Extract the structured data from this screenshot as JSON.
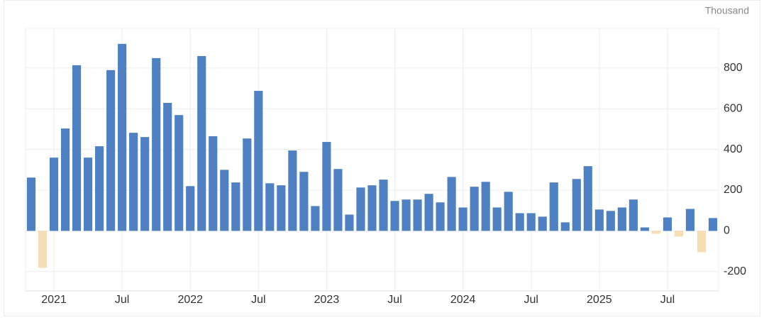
{
  "chart_data": {
    "type": "bar",
    "unit": "Thousand",
    "categories": [
      null,
      null,
      "2021",
      null,
      null,
      null,
      null,
      null,
      "Jul",
      null,
      null,
      null,
      null,
      null,
      "2022",
      null,
      null,
      null,
      null,
      null,
      "Jul",
      null,
      null,
      null,
      null,
      null,
      "2023",
      null,
      null,
      null,
      null,
      null,
      "Jul",
      null,
      null,
      null,
      null,
      null,
      "2024",
      null,
      null,
      null,
      null,
      null,
      "Jul",
      null,
      null,
      null,
      null,
      null,
      "2025",
      null,
      null,
      null,
      null,
      null,
      "Jul",
      null,
      null,
      null,
      null
    ],
    "values": [
      262,
      -182,
      360,
      503,
      814,
      360,
      416,
      790,
      919,
      482,
      461,
      849,
      629,
      569,
      220,
      859,
      465,
      300,
      238,
      454,
      688,
      234,
      224,
      395,
      290,
      122,
      437,
      304,
      80,
      213,
      224,
      252,
      147,
      154,
      154,
      182,
      140,
      265,
      115,
      217,
      241,
      115,
      192,
      87,
      87,
      70,
      238,
      42,
      255,
      318,
      105,
      98,
      115,
      154,
      17,
      -14,
      66,
      -28,
      108,
      -105,
      63
    ],
    "color": "#4f81c2",
    "negative_color": "#f5deb5",
    "ylim": [
      -295,
      995
    ],
    "yticks": [
      -200,
      0,
      200,
      400,
      600,
      800
    ],
    "grid": true
  }
}
